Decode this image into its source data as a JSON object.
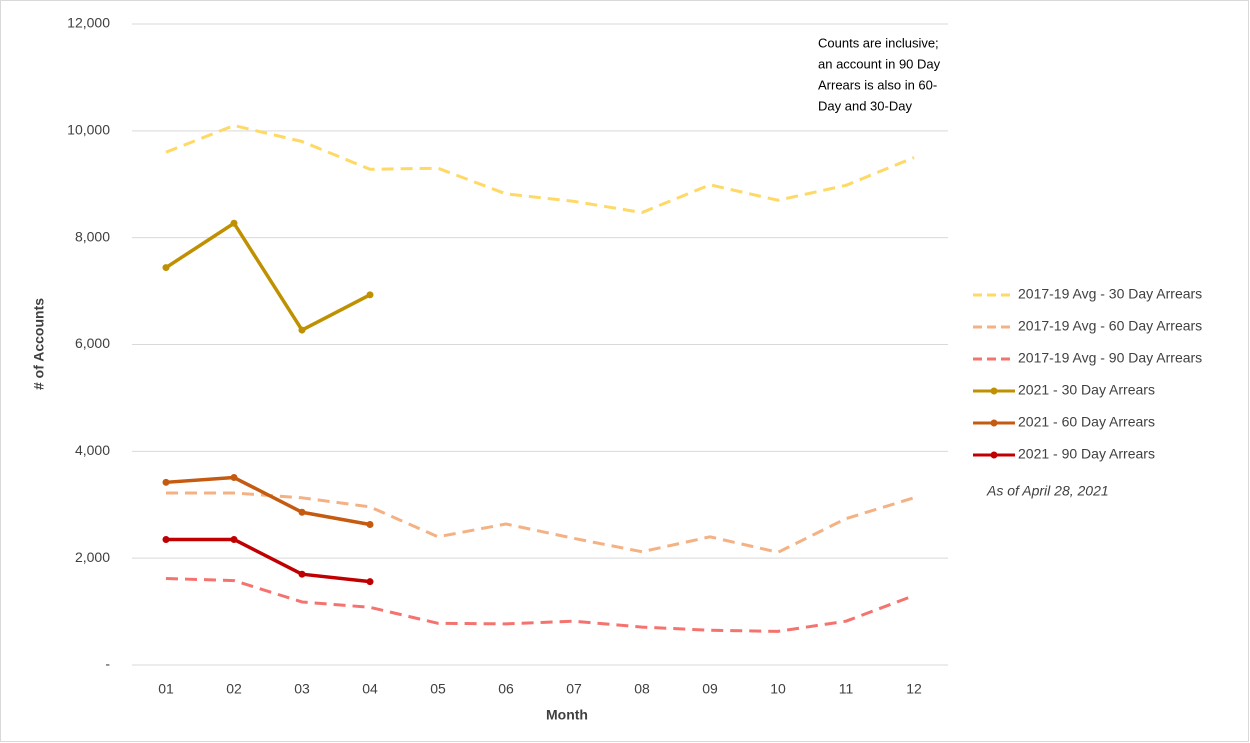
{
  "chart_data": {
    "type": "line",
    "x_label": "Month",
    "y_label": "# of Accounts",
    "categories": [
      "01",
      "02",
      "03",
      "04",
      "05",
      "06",
      "07",
      "08",
      "09",
      "10",
      "11",
      "12"
    ],
    "ylim": [
      0,
      12000
    ],
    "yticks": [
      {
        "value": 0,
        "label": "-"
      },
      {
        "value": 2000,
        "label": "2,000"
      },
      {
        "value": 4000,
        "label": "4,000"
      },
      {
        "value": 6000,
        "label": "6,000"
      },
      {
        "value": 8000,
        "label": "8,000"
      },
      {
        "value": 10000,
        "label": "10,000"
      },
      {
        "value": 12000,
        "label": "12,000"
      }
    ],
    "grid": true,
    "legend": "right",
    "series": [
      {
        "name": "2017-19 Avg - 30 Day Arrears",
        "color": "#ffd966",
        "dashed": true,
        "markers": false,
        "values": [
          9600,
          10100,
          9800,
          9280,
          9300,
          8820,
          8680,
          8470,
          8990,
          8700,
          8980,
          9500
        ]
      },
      {
        "name": "2017-19 Avg - 60 Day Arrears",
        "color": "#f4b183",
        "dashed": true,
        "markers": false,
        "values": [
          3220,
          3220,
          3130,
          2960,
          2400,
          2640,
          2370,
          2120,
          2400,
          2110,
          2740,
          3130
        ]
      },
      {
        "name": "2017-19 Avg - 90 Day Arrears",
        "color": "#f4736f",
        "dashed": true,
        "markers": false,
        "values": [
          1620,
          1580,
          1180,
          1080,
          780,
          770,
          820,
          710,
          650,
          630,
          820,
          1300
        ]
      },
      {
        "name": "2021 - 30 Day Arrears",
        "color": "#bf9000",
        "dashed": false,
        "markers": true,
        "values": [
          7440,
          8270,
          6270,
          6930,
          null,
          null,
          null,
          null,
          null,
          null,
          null,
          null
        ]
      },
      {
        "name": "2021 - 60 Day Arrears",
        "color": "#c55a11",
        "dashed": false,
        "markers": true,
        "values": [
          3420,
          3510,
          2860,
          2630,
          null,
          null,
          null,
          null,
          null,
          null,
          null,
          null
        ]
      },
      {
        "name": "2021 - 90 Day Arrears",
        "color": "#c00000",
        "dashed": false,
        "markers": true,
        "values": [
          2350,
          2350,
          1700,
          1560,
          null,
          null,
          null,
          null,
          null,
          null,
          null,
          null
        ]
      }
    ],
    "note": [
      "Counts are inclusive;",
      "an account in 90 Day",
      "Arrears is also in 60-",
      "Day and 30-Day"
    ],
    "as_of": "As of April 28, 2021"
  }
}
